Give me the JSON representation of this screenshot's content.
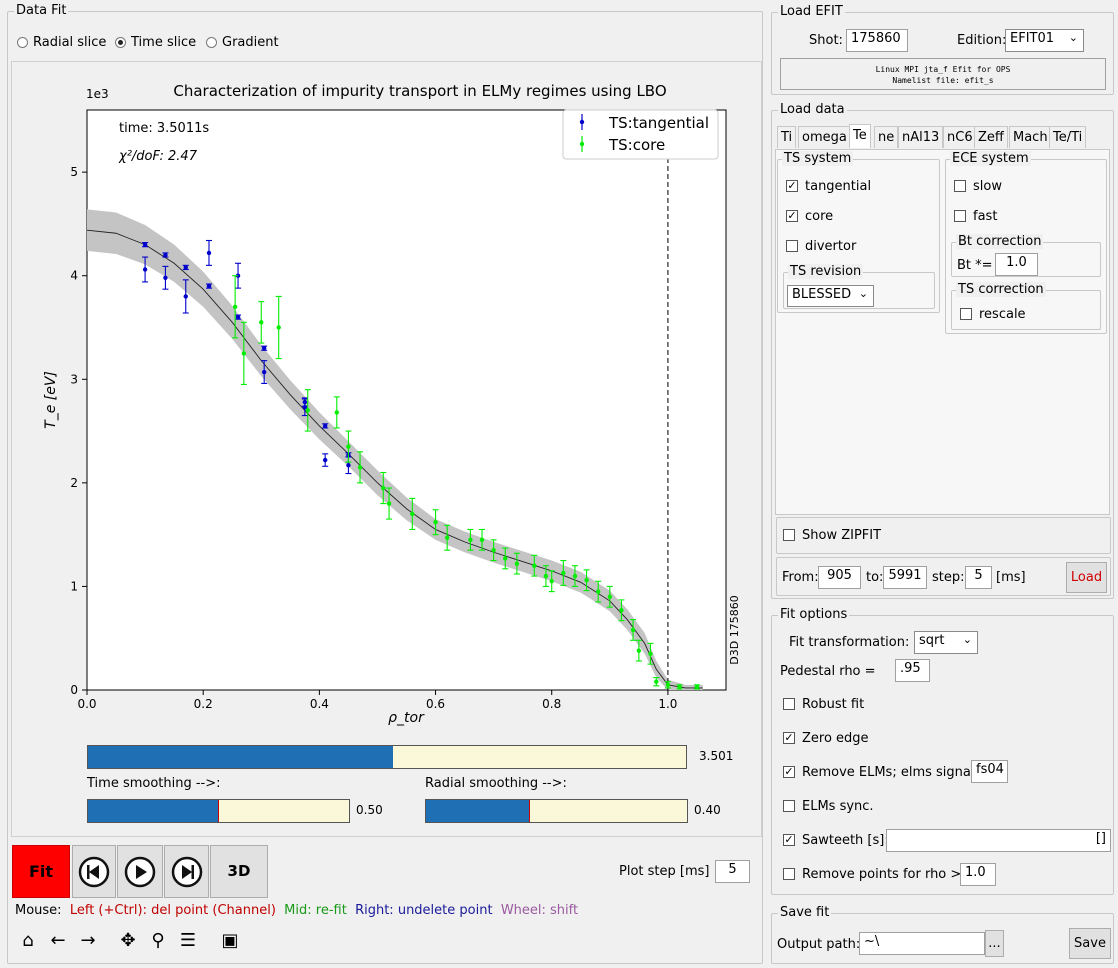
{
  "data_fit": {
    "title": "Data Fit",
    "radio": {
      "radial": "Radial slice",
      "time": "Time slice",
      "gradient": "Gradient"
    }
  },
  "chart_data": {
    "type": "scatter",
    "title": "Characterization of impurity transport in ELMy regimes using LBO",
    "xlabel": "ρ_tor",
    "ylabel": "T_e [eV]",
    "ylabel_scale": "1e3",
    "xlim": [
      0.0,
      1.1
    ],
    "ylim": [
      0,
      5.6
    ],
    "x_ticks": [
      "0.0",
      "0.2",
      "0.4",
      "0.6",
      "0.8",
      "1.0"
    ],
    "y_ticks": [
      "0",
      "1",
      "2",
      "3",
      "4",
      "5"
    ],
    "annot_time": "time: 3.5011s",
    "annot_chi": "χ²/doF: 2.47",
    "side_label": "D3D 175860",
    "vline_x": 1.0,
    "legend_position": "top-right",
    "fit": {
      "x": [
        0.0,
        0.05,
        0.1,
        0.15,
        0.2,
        0.25,
        0.3,
        0.35,
        0.4,
        0.45,
        0.5,
        0.55,
        0.6,
        0.65,
        0.7,
        0.75,
        0.8,
        0.85,
        0.9,
        0.93,
        0.96,
        0.98,
        1.0,
        1.03,
        1.06
      ],
      "y": [
        4.44,
        4.41,
        4.3,
        4.12,
        3.87,
        3.55,
        3.18,
        2.85,
        2.55,
        2.28,
        2.0,
        1.75,
        1.55,
        1.43,
        1.33,
        1.24,
        1.15,
        1.04,
        0.86,
        0.68,
        0.45,
        0.2,
        0.05,
        0.02,
        0.02
      ],
      "band": [
        0.2,
        0.2,
        0.19,
        0.18,
        0.17,
        0.16,
        0.15,
        0.14,
        0.13,
        0.12,
        0.12,
        0.11,
        0.1,
        0.1,
        0.1,
        0.1,
        0.1,
        0.1,
        0.1,
        0.1,
        0.1,
        0.08,
        0.05,
        0.03,
        0.03
      ]
    },
    "series": [
      {
        "name": "TS:tangential",
        "color": "#0000cc",
        "x": [
          0.1,
          0.1,
          0.135,
          0.135,
          0.17,
          0.17,
          0.21,
          0.21,
          0.26,
          0.26,
          0.305,
          0.305,
          0.375,
          0.375,
          0.41,
          0.41,
          0.45,
          0.45
        ],
        "y": [
          4.3,
          4.06,
          4.2,
          3.98,
          4.08,
          3.8,
          3.9,
          4.22,
          3.6,
          4.0,
          3.3,
          3.07,
          2.78,
          2.73,
          2.55,
          2.22,
          2.27,
          2.17
        ],
        "err": [
          0.02,
          0.12,
          0.02,
          0.11,
          0.02,
          0.16,
          0.02,
          0.12,
          0.02,
          0.12,
          0.02,
          0.11,
          0.04,
          0.08,
          0.02,
          0.06,
          0.02,
          0.08
        ]
      },
      {
        "name": "TS:core",
        "color": "#00ee00",
        "x": [
          0.255,
          0.27,
          0.3,
          0.33,
          0.38,
          0.43,
          0.45,
          0.47,
          0.51,
          0.52,
          0.56,
          0.6,
          0.62,
          0.66,
          0.68,
          0.7,
          0.72,
          0.74,
          0.77,
          0.79,
          0.8,
          0.82,
          0.84,
          0.86,
          0.88,
          0.9,
          0.92,
          0.94,
          0.95,
          0.97,
          0.98,
          1.0,
          1.02,
          1.05
        ],
        "y": [
          3.7,
          3.25,
          3.55,
          3.5,
          2.7,
          2.68,
          2.35,
          2.15,
          1.95,
          1.8,
          1.7,
          1.62,
          1.47,
          1.45,
          1.45,
          1.35,
          1.27,
          1.22,
          1.2,
          1.1,
          1.05,
          1.13,
          1.1,
          1.06,
          0.95,
          0.9,
          0.77,
          0.58,
          0.38,
          0.35,
          0.08,
          0.05,
          0.03,
          0.03
        ],
        "err": [
          0.3,
          0.3,
          0.2,
          0.3,
          0.2,
          0.15,
          0.15,
          0.15,
          0.15,
          0.15,
          0.15,
          0.12,
          0.12,
          0.1,
          0.1,
          0.1,
          0.1,
          0.1,
          0.1,
          0.1,
          0.1,
          0.12,
          0.1,
          0.1,
          0.1,
          0.1,
          0.1,
          0.1,
          0.1,
          0.1,
          0.04,
          0.03,
          0.02,
          0.02
        ]
      }
    ]
  },
  "sliders": {
    "main": {
      "value": "3.501",
      "fraction": 0.51
    },
    "time_label": "Time smoothing -->:",
    "time": {
      "value": "0.50",
      "fraction": 0.5
    },
    "radial_label": "Radial smoothing -->:",
    "radial": {
      "value": "0.40",
      "fraction": 0.4
    }
  },
  "controls": {
    "fit": "Fit",
    "three_d": "3D",
    "plot_step_label": "Plot step [ms]",
    "plot_step": "5"
  },
  "mouse": {
    "prefix": "Mouse:",
    "left": "Left (+Ctrl): del point (Channel)",
    "mid": "Mid: re-fit",
    "right": "Right: undelete point",
    "wheel": "Wheel: shift"
  },
  "load_efit": {
    "title": "Load EFIT",
    "shot_label": "Shot:",
    "shot": "175860",
    "edition_label": "Edition:",
    "edition": "EFIT01",
    "info1": "Linux MPI jta_f Efit for OPS",
    "info2": "Namelist file: efit_s"
  },
  "load_data": {
    "title": "Load data",
    "tabs": [
      "Ti",
      "omega",
      "Te",
      "ne",
      "nAl13",
      "nC6",
      "Zeff",
      "Mach",
      "Te/Ti"
    ],
    "ts_system": "TS system",
    "tangential": "tangential",
    "core": "core",
    "divertor": "divertor",
    "ts_revision": "TS revision",
    "revision": "BLESSED",
    "ece_system": "ECE system",
    "slow": "slow",
    "fast": "fast",
    "bt_correction": "Bt correction",
    "bt_label": "Bt *=",
    "bt_value": "1.0",
    "ts_correction": "TS correction",
    "rescale": "rescale",
    "show_zipfit": "Show ZIPFIT",
    "from_label": "From:",
    "from": "905",
    "to_label": "to:",
    "to": "5991",
    "step_label": "step:",
    "step": "5",
    "ms": "[ms]",
    "load": "Load"
  },
  "fit_options": {
    "title": "Fit options",
    "transform_label": "Fit transformation:",
    "transform": "sqrt",
    "ped_label": "Pedestal rho =",
    "ped": ".95",
    "robust": "Robust fit",
    "zero_edge": "Zero edge",
    "remove_elms": "Remove ELMs; elms signal:",
    "elms_signal": "fs04",
    "elms_sync": "ELMs sync.",
    "sawteeth": "Sawteeth [s]:",
    "sawteeth_value": "[]",
    "remove_points": "Remove points for rho >",
    "remove_rho": "1.0"
  },
  "save_fit": {
    "title": "Save fit",
    "output_label": "Output path:",
    "output": "~\\",
    "browse": "...",
    "save": "Save"
  }
}
